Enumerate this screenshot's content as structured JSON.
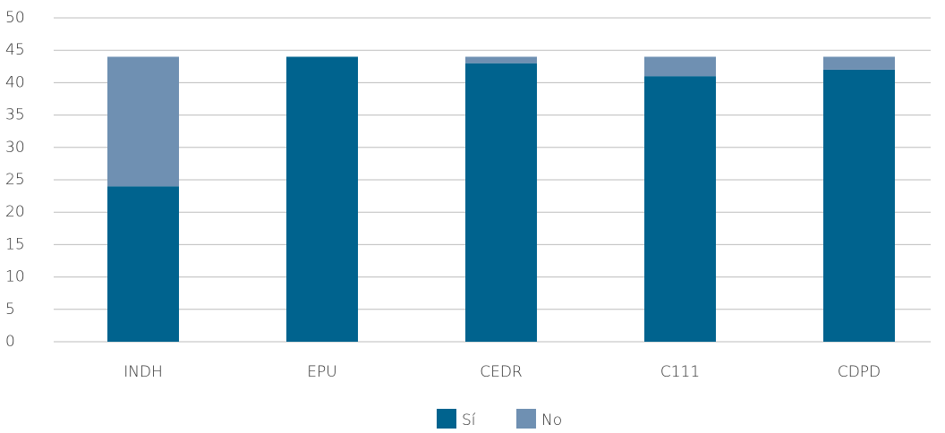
{
  "chart_data": {
    "type": "stacked_bar",
    "categories": [
      "INDH",
      "EPU",
      "CEDR",
      "C111",
      "CDPD"
    ],
    "series": [
      {
        "name": "Sí",
        "color": "#00638e",
        "values": [
          24,
          44,
          43,
          41,
          42
        ]
      },
      {
        "name": "No",
        "color": "#6f90b2",
        "values": [
          20,
          0,
          1,
          3,
          2
        ]
      }
    ],
    "ylim": [
      0,
      50
    ],
    "yticks": [
      0,
      5,
      10,
      15,
      20,
      25,
      30,
      35,
      40,
      45,
      50
    ],
    "grid": true,
    "legend": "bottom"
  }
}
